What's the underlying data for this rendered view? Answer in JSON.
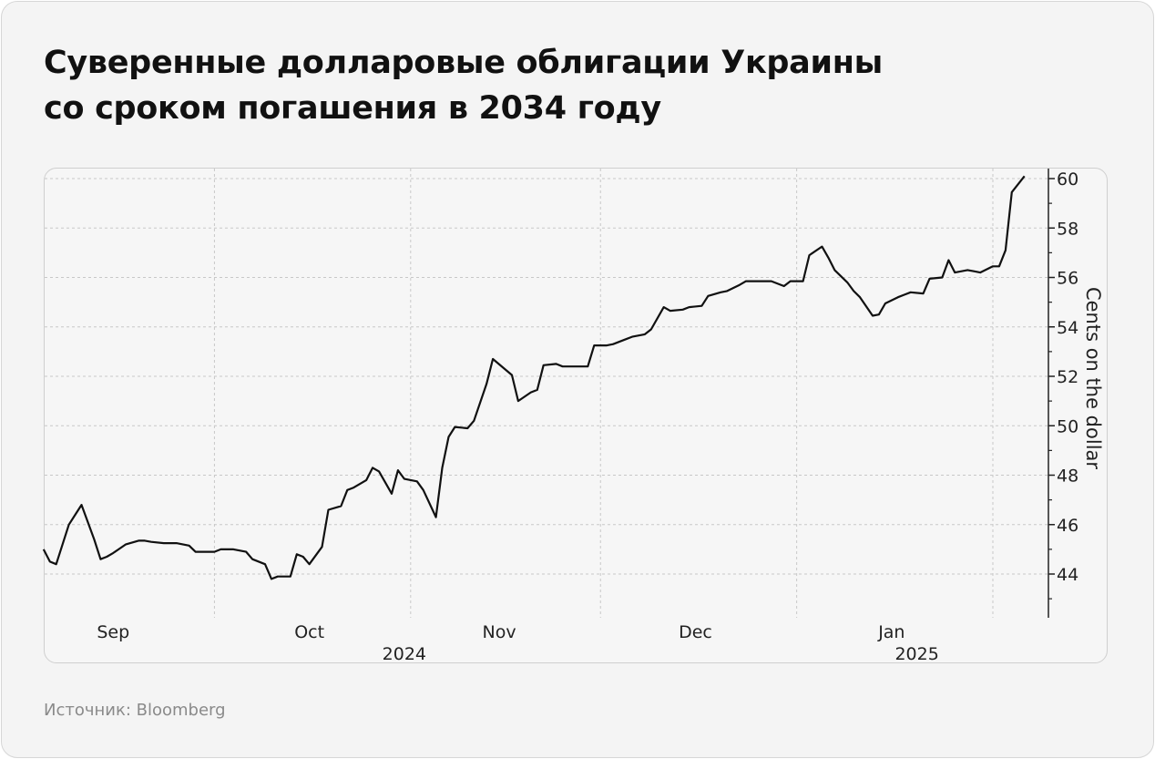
{
  "title_lines": [
    "Суверенные долларовые облигации Украины",
    "со сроком погашения в 2034 году"
  ],
  "source": "Источник: Bloomberg",
  "chart_data": {
    "type": "line",
    "title": "Суверенные долларовые облигации Украины со сроком погашения в 2034 году",
    "ylabel": "Cents on the dollar",
    "y_axis_position": "right",
    "ylim": [
      42.3,
      60.4
    ],
    "yticks": [
      44,
      46,
      48,
      50,
      52,
      54,
      56,
      58,
      60
    ],
    "xlim": [
      "2024-08-31",
      "2025-02-11"
    ],
    "month_labels": [
      {
        "label": "Sep",
        "date": "2024-09-15"
      },
      {
        "label": "Oct",
        "date": "2024-10-16"
      },
      {
        "label": "Nov",
        "date": "2024-11-15"
      },
      {
        "label": "Dec",
        "date": "2024-12-16"
      },
      {
        "label": "Jan",
        "date": "2025-01-16"
      }
    ],
    "year_labels": [
      {
        "label": "2024",
        "date": "2024-10-31"
      },
      {
        "label": "2025",
        "date": "2025-01-20"
      }
    ],
    "gridlines_x": [
      "2024-10-01",
      "2024-11-01",
      "2024-12-01",
      "2025-01-01",
      "2025-02-01"
    ],
    "grid": true,
    "line_color": "#111111",
    "series": [
      {
        "x": [
          "2024-09-04",
          "2024-09-05",
          "2024-09-06",
          "2024-09-08",
          "2024-09-09",
          "2024-09-10",
          "2024-09-12",
          "2024-09-13",
          "2024-09-14",
          "2024-09-15",
          "2024-09-17",
          "2024-09-19",
          "2024-09-20",
          "2024-09-21",
          "2024-09-23",
          "2024-09-25",
          "2024-09-27",
          "2024-09-28",
          "2024-09-29",
          "2024-10-01",
          "2024-10-02",
          "2024-10-04",
          "2024-10-06",
          "2024-10-07",
          "2024-10-09",
          "2024-10-10",
          "2024-10-11",
          "2024-10-13",
          "2024-10-14",
          "2024-10-15",
          "2024-10-16",
          "2024-10-18",
          "2024-10-19",
          "2024-10-21",
          "2024-10-22",
          "2024-10-23",
          "2024-10-25",
          "2024-10-26",
          "2024-10-27",
          "2024-10-29",
          "2024-10-30",
          "2024-10-31",
          "2024-11-02",
          "2024-11-03",
          "2024-11-05",
          "2024-11-06",
          "2024-11-07",
          "2024-11-08",
          "2024-11-10",
          "2024-11-11",
          "2024-11-13",
          "2024-11-14",
          "2024-11-17",
          "2024-11-18",
          "2024-11-20",
          "2024-11-21",
          "2024-11-22",
          "2024-11-24",
          "2024-11-25",
          "2024-11-27",
          "2024-11-29",
          "2024-11-30",
          "2024-12-02",
          "2024-12-03",
          "2024-12-05",
          "2024-12-06",
          "2024-12-08",
          "2024-12-09",
          "2024-12-11",
          "2024-12-12",
          "2024-12-14",
          "2024-12-15",
          "2024-12-17",
          "2024-12-18",
          "2024-12-20",
          "2024-12-21",
          "2024-12-23",
          "2024-12-24",
          "2024-12-28",
          "2024-12-30",
          "2024-12-31",
          "2025-01-02",
          "2025-01-03",
          "2025-01-05",
          "2025-01-06",
          "2025-01-07",
          "2025-01-09",
          "2025-01-10",
          "2025-01-11",
          "2025-01-13",
          "2025-01-14",
          "2025-01-15",
          "2025-01-17",
          "2025-01-18",
          "2025-01-19",
          "2025-01-21",
          "2025-01-22",
          "2025-01-24",
          "2025-01-25",
          "2025-01-26",
          "2025-01-28",
          "2025-01-29",
          "2025-01-30",
          "2025-02-01",
          "2025-02-02",
          "2025-02-03",
          "2025-02-04",
          "2025-02-06"
        ],
        "y": [
          45.0,
          44.5,
          44.4,
          46.0,
          46.4,
          46.8,
          45.4,
          44.6,
          44.7,
          44.85,
          45.2,
          45.35,
          45.35,
          45.3,
          45.25,
          45.25,
          45.15,
          44.9,
          44.9,
          44.9,
          45.0,
          45.0,
          44.9,
          44.6,
          44.4,
          43.8,
          43.9,
          43.9,
          44.8,
          44.7,
          44.4,
          45.1,
          46.6,
          46.75,
          47.4,
          47.5,
          47.8,
          48.3,
          48.15,
          47.25,
          48.2,
          47.85,
          47.75,
          47.4,
          46.3,
          48.3,
          49.55,
          49.95,
          49.9,
          50.2,
          51.7,
          52.7,
          52.05,
          51.0,
          51.35,
          51.45,
          52.45,
          52.5,
          52.4,
          52.4,
          52.4,
          53.25,
          53.25,
          53.3,
          53.5,
          53.6,
          53.7,
          53.9,
          54.8,
          54.65,
          54.7,
          54.8,
          54.85,
          55.25,
          55.4,
          55.45,
          55.7,
          55.85,
          55.85,
          55.65,
          55.85,
          55.85,
          56.9,
          57.25,
          56.8,
          56.3,
          55.8,
          55.45,
          55.2,
          54.45,
          54.5,
          54.95,
          55.2,
          55.3,
          55.4,
          55.35,
          55.95,
          56.0,
          56.7,
          56.2,
          56.3,
          56.25,
          56.2,
          56.45,
          56.45,
          57.1,
          59.45,
          60.1
        ]
      }
    ]
  }
}
